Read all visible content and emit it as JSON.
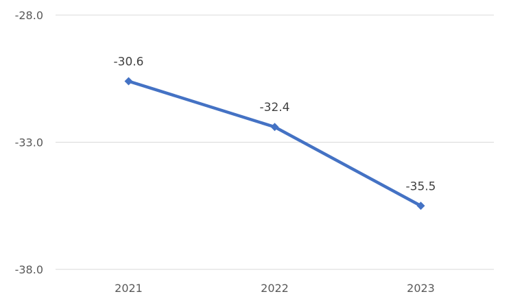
{
  "chart_data": {
    "type": "line",
    "title": "",
    "xlabel": "",
    "ylabel": "",
    "categories": [
      "2021",
      "2022",
      "2023"
    ],
    "series": [
      {
        "values": [
          -30.6,
          -32.4,
          -35.5
        ],
        "color": "#4472C4",
        "marker": "diamond"
      }
    ],
    "ylim": [
      -38.0,
      -28.0
    ],
    "yticks": [
      "-28.0",
      "-33.0",
      "-38.0"
    ],
    "grid": true,
    "legend": "none",
    "data_labels": [
      "-30.6",
      "-32.4",
      "-35.5"
    ]
  }
}
